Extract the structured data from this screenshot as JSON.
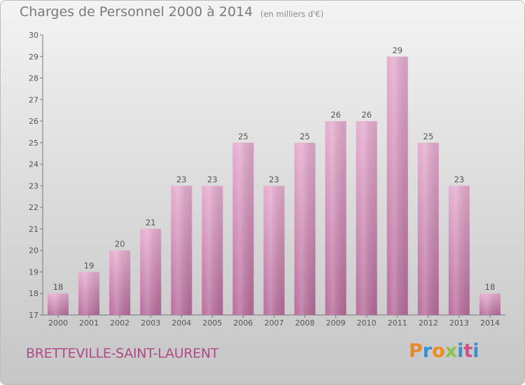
{
  "header": {
    "title": "Charges de Personnel 2000 à 2014",
    "unit": "(en milliers d'€)"
  },
  "footer": {
    "commune": "BRETTEVILLE-SAINT-LAURENT",
    "logo": {
      "p": "P",
      "r": "r",
      "o": "o",
      "x": "x",
      "i": "i",
      "t": "t",
      "i2": "i"
    }
  },
  "colors": {
    "bar": "#d98bb6",
    "bar_light": "#e8b0cf",
    "bar_dark": "#b8679a",
    "commune": "#b04a86"
  },
  "chart_data": {
    "type": "bar",
    "title": "Charges de Personnel 2000 à 2014",
    "subtitle": "(en milliers d'€)",
    "categories": [
      "2000",
      "2001",
      "2002",
      "2003",
      "2004",
      "2005",
      "2006",
      "2007",
      "2008",
      "2009",
      "2010",
      "2011",
      "2012",
      "2013",
      "2014"
    ],
    "values": [
      18,
      19,
      20,
      21,
      23,
      23,
      25,
      23,
      25,
      26,
      26,
      29,
      25,
      23,
      18
    ],
    "ylim": [
      17,
      30
    ],
    "yticks": [
      17,
      18,
      19,
      20,
      21,
      22,
      23,
      24,
      25,
      26,
      27,
      28,
      29,
      30
    ],
    "grid": false,
    "legend": "none"
  }
}
